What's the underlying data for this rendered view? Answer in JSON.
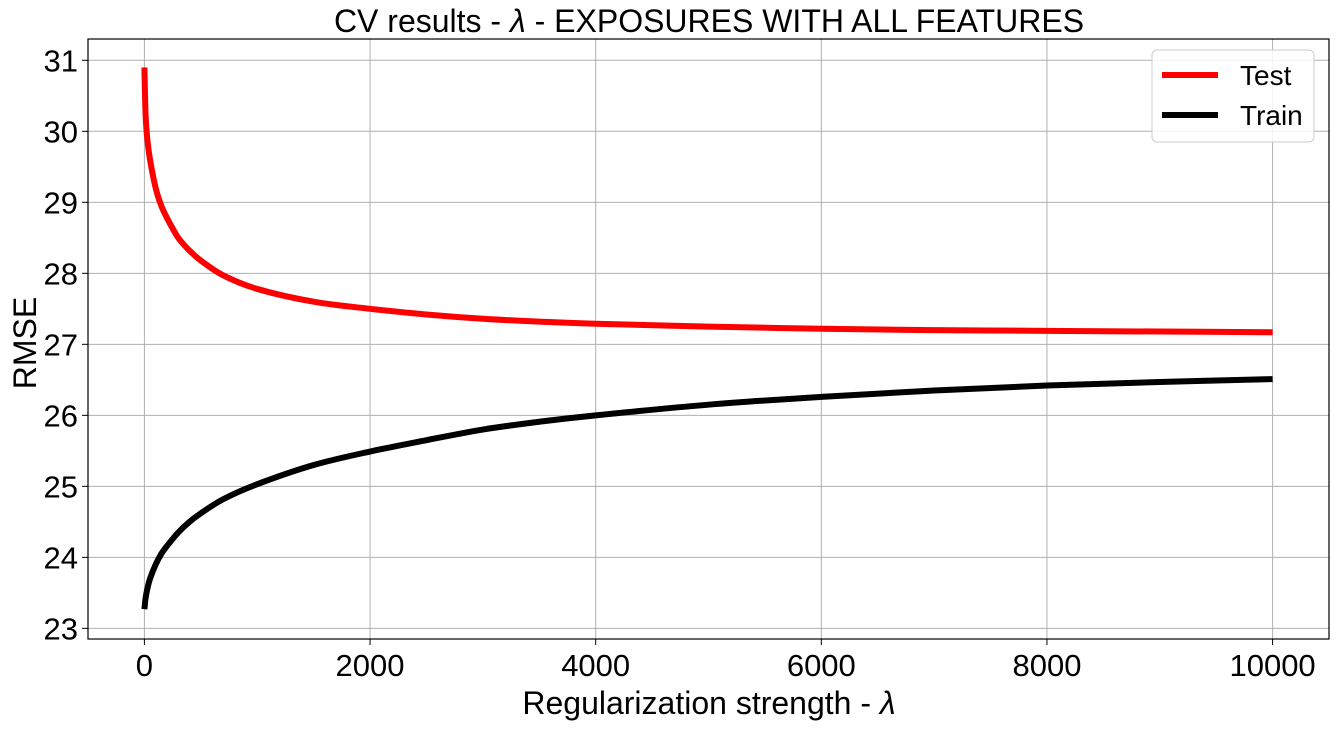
{
  "chart_data": {
    "type": "line",
    "title_prefix": "CV results - ",
    "title_symbol": "λ",
    "title_suffix": " - EXPOSURES WITH ALL FEATURES",
    "xlabel_prefix": "Regularization strength - ",
    "xlabel_symbol": "λ",
    "ylabel": "RMSE",
    "xlim": [
      -500,
      10500
    ],
    "ylim": [
      22.85,
      31.3
    ],
    "xticks": [
      0,
      2000,
      4000,
      6000,
      8000,
      10000
    ],
    "xtick_labels": [
      "0",
      "2000",
      "4000",
      "6000",
      "8000",
      "10000"
    ],
    "yticks": [
      23,
      24,
      25,
      26,
      27,
      28,
      29,
      30,
      31
    ],
    "ytick_labels": [
      "23",
      "24",
      "25",
      "26",
      "27",
      "28",
      "29",
      "30",
      "31"
    ],
    "grid": true,
    "legend_position": "top-right",
    "series": [
      {
        "name": "Test",
        "color": "#ff0000",
        "x": [
          0,
          10,
          25,
          50,
          100,
          150,
          200,
          300,
          400,
          500,
          700,
          1000,
          1500,
          2000,
          2500,
          3000,
          3500,
          4000,
          5000,
          6000,
          7000,
          8000,
          9000,
          10000
        ],
        "y": [
          30.9,
          30.25,
          29.9,
          29.6,
          29.2,
          28.95,
          28.78,
          28.5,
          28.32,
          28.18,
          27.97,
          27.78,
          27.6,
          27.5,
          27.42,
          27.36,
          27.32,
          27.29,
          27.25,
          27.22,
          27.2,
          27.19,
          27.18,
          27.17
        ]
      },
      {
        "name": "Train",
        "color": "#000000",
        "x": [
          0,
          10,
          25,
          50,
          100,
          150,
          200,
          300,
          400,
          500,
          700,
          1000,
          1500,
          2000,
          2500,
          3000,
          3500,
          4000,
          5000,
          6000,
          7000,
          8000,
          9000,
          10000
        ],
        "y": [
          23.27,
          23.42,
          23.55,
          23.7,
          23.9,
          24.05,
          24.16,
          24.35,
          24.5,
          24.62,
          24.82,
          25.03,
          25.3,
          25.49,
          25.65,
          25.8,
          25.91,
          26.0,
          26.15,
          26.26,
          26.35,
          26.42,
          26.47,
          26.51
        ]
      }
    ]
  }
}
